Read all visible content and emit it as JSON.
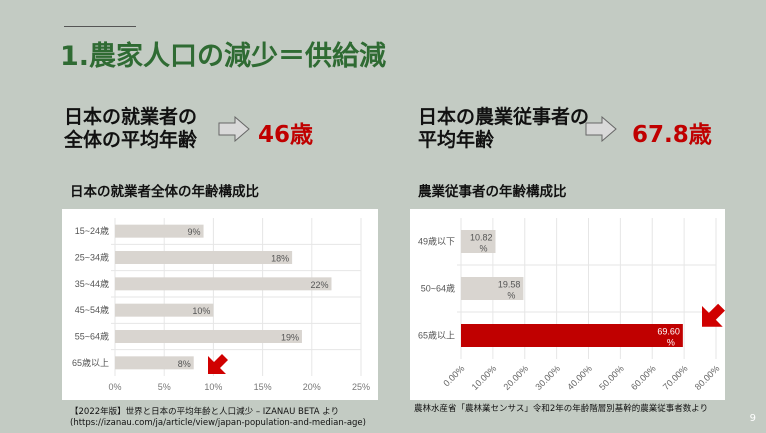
{
  "title": "1.農家人口の減少＝供給減",
  "left": {
    "label_line1": "日本の就業者の",
    "label_line2": "全体の平均年齢",
    "age": "46歳",
    "chart_title": "日本の就業者全体の年齢構成比",
    "source_line1": "【2022年版】世界と日本の平均年齢と人口減少 – IZANAU BETA より",
    "source_line2": "(https://izanau.com/ja/article/view/japan-population-and-median-age)"
  },
  "right": {
    "label_line1": "日本の農業従事者の",
    "label_line2": "平均年齢",
    "age": "67.8歳",
    "chart_title": "農業従事者の年齢構成比",
    "source": "農林水産省「農林業センサス」令和2年の年齢階層別基幹的農業従事者数より"
  },
  "page_number": "9",
  "colors": {
    "title": "#2f6b33",
    "accent": "#c00000",
    "bar": "#d9d5d0"
  },
  "chart_data": [
    {
      "type": "bar",
      "orientation": "horizontal",
      "categories": [
        "15~24歳",
        "25~34歳",
        "35~44歳",
        "45~54歳",
        "55~64歳",
        "65歳以上"
      ],
      "values": [
        9,
        18,
        22,
        10,
        19,
        8
      ],
      "data_labels": [
        "9%",
        "18%",
        "22%",
        "10%",
        "19%",
        "8%"
      ],
      "xlim": [
        0,
        25
      ],
      "xticks": [
        "0%",
        "5%",
        "10%",
        "15%",
        "20%",
        "25%"
      ],
      "grid": true,
      "highlight": "65歳以上"
    },
    {
      "type": "bar",
      "orientation": "horizontal",
      "categories": [
        "49歳以下",
        "50~64歳",
        "65歳以上"
      ],
      "values": [
        10.82,
        19.58,
        69.6
      ],
      "data_labels": [
        "10.82%",
        "19.58%",
        "69.60%"
      ],
      "xlim": [
        0,
        80
      ],
      "xticks": [
        "0.00%",
        "10.00%",
        "20.00%",
        "30.00%",
        "40.00%",
        "50.00%",
        "60.00%",
        "70.00%",
        "80.00%"
      ],
      "grid": true,
      "highlight": "65歳以上"
    }
  ]
}
